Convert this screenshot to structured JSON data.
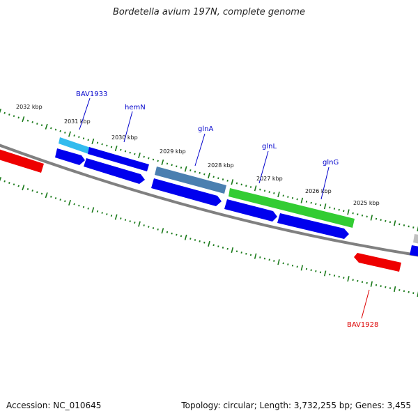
{
  "title": "Bordetella avium 197N, complete genome",
  "accession_text": "Accession: NC_010645",
  "summary_text": "Topology: circular; Length: 3,732,255 bp; Genes: 3,455",
  "colors": {
    "backbone": "#808080",
    "ticks": "#1a7a1a",
    "cds_blue": "#0000ee",
    "cds_red": "#ee0000",
    "label_blue": "#0000cc",
    "label_red": "#dd0000",
    "gene_light_blue": "#33bbee",
    "gene_steel_blue": "#4a7fb0",
    "gene_green": "#33cc33",
    "gene_gray": "#c0c0c0"
  },
  "kbp_ticks": [
    {
      "label": "2032 kbp"
    },
    {
      "label": "2031 kbp"
    },
    {
      "label": "2030 kbp"
    },
    {
      "label": "2029 kbp"
    },
    {
      "label": "2028 kbp"
    },
    {
      "label": "2027 kbp"
    },
    {
      "label": "2026 kbp"
    },
    {
      "label": "2025 kbp"
    }
  ],
  "gene_labels": [
    {
      "name": "BAV1933",
      "color": "#0000cc"
    },
    {
      "name": "hemN",
      "color": "#0000cc"
    },
    {
      "name": "glnA",
      "color": "#0000cc"
    },
    {
      "name": "glnL",
      "color": "#0000cc"
    },
    {
      "name": "glnG",
      "color": "#0000cc"
    },
    {
      "name": "BAV1928",
      "color": "#dd0000"
    }
  ]
}
